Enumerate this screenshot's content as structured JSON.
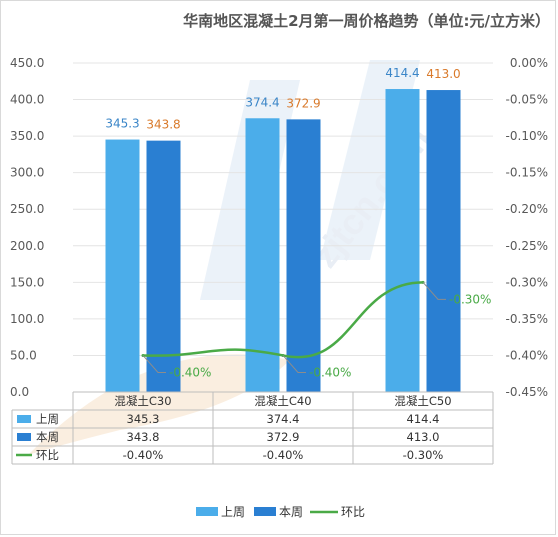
{
  "title": "华南地区混凝土2月第一周价格趋势（单位:元/立方米）",
  "watermark": "zjtcn.com",
  "colors": {
    "last_week": "#4badea",
    "this_week": "#2a7fd2",
    "change": "#4aaa47",
    "label_last": "#3b86c8",
    "label_this": "#d97a2b",
    "grid": "#e4e4e4"
  },
  "chart_data": {
    "type": "bar",
    "categories": [
      "混凝土C30",
      "混凝土C40",
      "混凝土C50"
    ],
    "series": [
      {
        "name": "上周",
        "type": "bar",
        "axis": "left",
        "values": [
          345.3,
          374.4,
          414.4
        ],
        "labels": [
          "345.3",
          "374.4",
          "414.4"
        ]
      },
      {
        "name": "本周",
        "type": "bar",
        "axis": "left",
        "values": [
          343.8,
          372.9,
          413.0
        ],
        "labels": [
          "343.8",
          "372.9",
          "413.0"
        ]
      },
      {
        "name": "环比",
        "type": "line",
        "axis": "right",
        "values": [
          -0.4,
          -0.4,
          -0.3
        ],
        "labels": [
          "-0.40%",
          "-0.40%",
          "-0.30%"
        ]
      }
    ],
    "y_left": {
      "min": 0,
      "max": 450,
      "ticks": [
        "0.0",
        "50.0",
        "100.0",
        "150.0",
        "200.0",
        "250.0",
        "300.0",
        "350.0",
        "400.0",
        "450.0"
      ]
    },
    "y_right": {
      "min": -0.45,
      "max": 0,
      "ticks": [
        "0.00%",
        "-0.05%",
        "-0.10%",
        "-0.15%",
        "-0.20%",
        "-0.25%",
        "-0.30%",
        "-0.35%",
        "-0.40%",
        "-0.45%"
      ]
    },
    "grid": true,
    "legend_position": "bottom",
    "data_table": {
      "rows": [
        {
          "series": "上周",
          "cells": [
            "345.3",
            "374.4",
            "414.4"
          ]
        },
        {
          "series": "本周",
          "cells": [
            "343.8",
            "372.9",
            "413.0"
          ]
        },
        {
          "series": "环比",
          "cells": [
            "-0.40%",
            "-0.40%",
            "-0.30%"
          ]
        }
      ]
    }
  }
}
